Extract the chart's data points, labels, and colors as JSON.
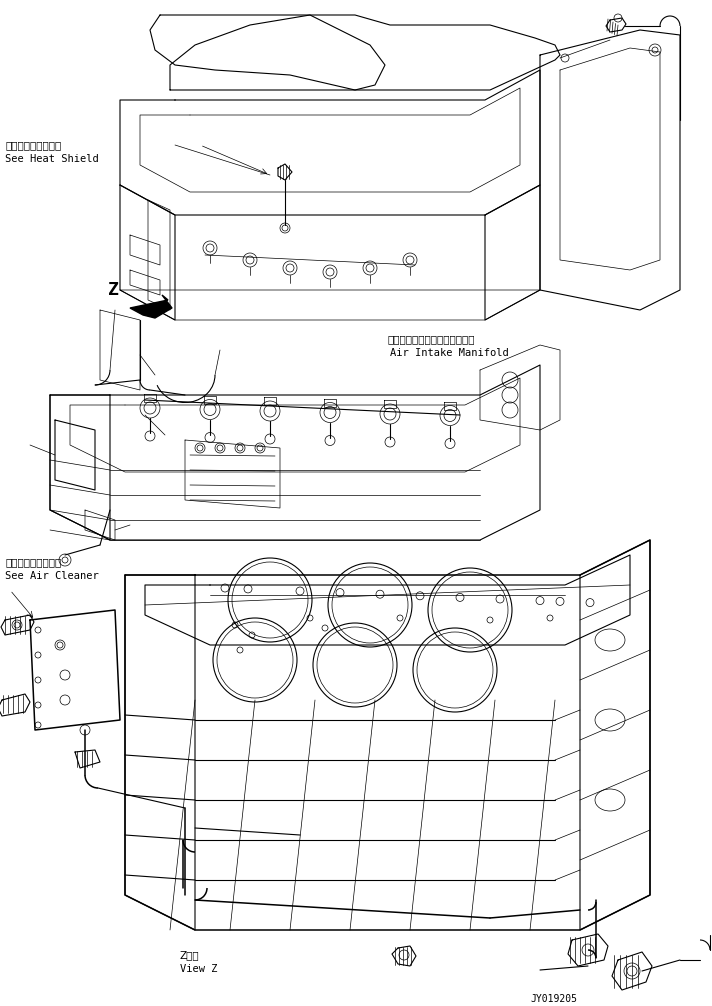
{
  "background_color": "#ffffff",
  "line_color": "#000000",
  "fig_width": 7.12,
  "fig_height": 10.06,
  "dpi": 100,
  "labels": {
    "heat_shield_jp": "ヒートシールド参照",
    "heat_shield_en": "See Heat Shield",
    "air_intake_jp": "エアーインテークマニホールド",
    "air_intake_en": "Air Intake Manifold",
    "air_cleaner_jp": "エアークリーナ参照",
    "air_cleaner_en": "See Air Cleaner",
    "view_z_jp": "Z　視",
    "view_z_en": "View Z",
    "part_number": "JY019205"
  }
}
